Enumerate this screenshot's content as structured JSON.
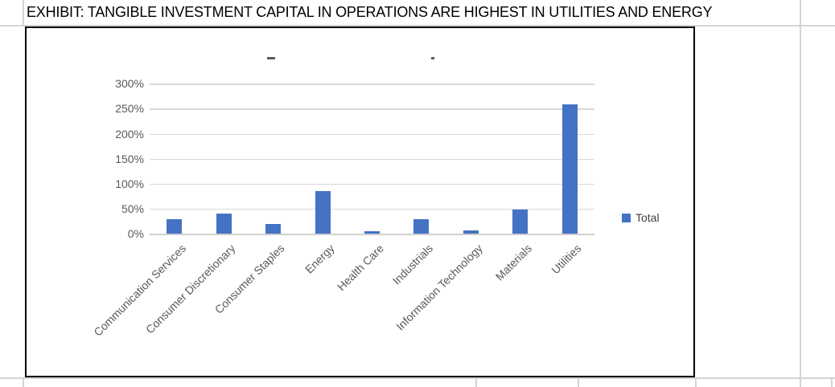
{
  "sheet": {
    "title": "EXHIBIT: TANGIBLE INVESTMENT CAPITAL IN OPERATIONS ARE HIGHEST IN UTILITIES AND ENERGY"
  },
  "chart_data": {
    "type": "bar",
    "categories": [
      "Communication Services",
      "Consumer Discretionary",
      "Consumer Staples",
      "Energy",
      "Health Care",
      "Industrials",
      "Information Technology",
      "Materials",
      "Utilities"
    ],
    "series": [
      {
        "name": "Total",
        "values": [
          29,
          40,
          20,
          85,
          5,
          29,
          7,
          48,
          258
        ]
      }
    ],
    "value_unit": "percent",
    "ylim": [
      0,
      300
    ],
    "ytick_step": 50,
    "yticks": [
      "0%",
      "50%",
      "100%",
      "150%",
      "200%",
      "250%",
      "300%"
    ],
    "grid": true,
    "legend": {
      "position": "right",
      "entries": [
        "Total"
      ]
    }
  },
  "colors": {
    "bar": "#4472C4",
    "chart_gridline": "#d9d9d9",
    "axis_label": "#595959",
    "excel_gridline": "#d4d4d4",
    "chart_border": "#000000",
    "legend_text": "#404040"
  }
}
